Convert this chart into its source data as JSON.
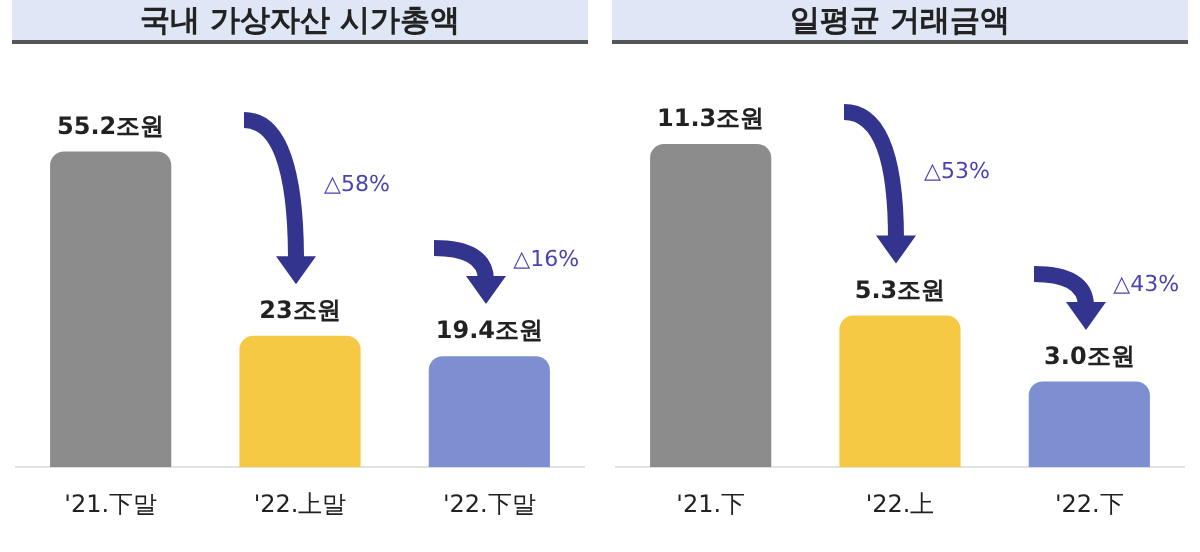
{
  "chart_data": [
    {
      "type": "bar",
      "title": "국내 가상자산 시가총액",
      "categories": [
        "'21.下말",
        "'22.上말",
        "'22.下말"
      ],
      "values": [
        55.2,
        23,
        19.4
      ],
      "colors": [
        "#8c8c8c",
        "#f6c945",
        "#7d8fd0"
      ],
      "value_labels": [
        "55.2조원",
        "23조원",
        "19.4조원"
      ],
      "annotations": [
        "△58%",
        "△16%"
      ],
      "tick_labels": "x",
      "grid": false,
      "legend": false
    },
    {
      "type": "bar",
      "title": "일평균 거래금액",
      "categories": [
        "'21.下",
        "'22.上",
        "'22.下"
      ],
      "values": [
        11.3,
        5.3,
        3.0
      ],
      "colors": [
        "#8c8c8c",
        "#f6c945",
        "#7d8fd0"
      ],
      "value_labels": [
        "11.3조원",
        "5.3조원",
        "3.0조원"
      ],
      "annotations": [
        "△53%",
        "△43%"
      ],
      "tick_labels": "x",
      "grid": false,
      "legend": false
    }
  ]
}
